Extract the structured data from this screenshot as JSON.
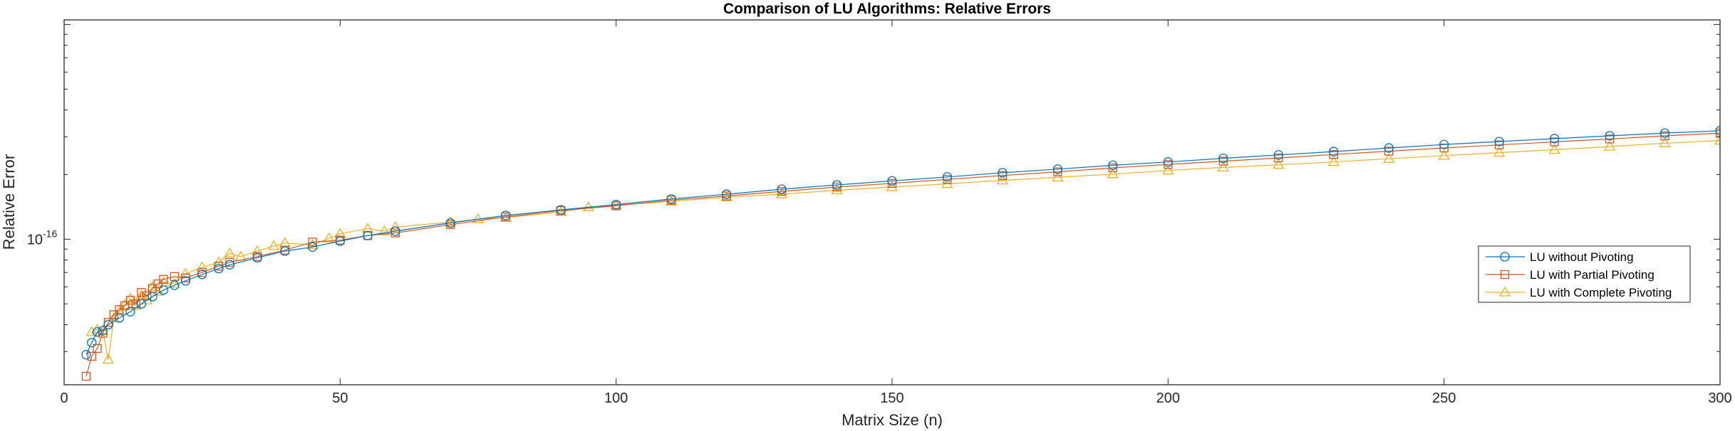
{
  "chart_data": {
    "type": "line",
    "title": "Comparison of LU Algorithms: Relative Errors",
    "xlabel": "Matrix Size (n)",
    "ylabel": "Relative Error",
    "yscale": "log",
    "xlim": [
      0,
      300
    ],
    "ylim": [
      2.1e-17,
      1.05e-15
    ],
    "x_ticks": [
      0,
      50,
      100,
      150,
      200,
      250,
      300
    ],
    "y_tick_labels": [
      {
        "base": "10",
        "exp": "-16",
        "value": 1e-16
      }
    ],
    "legend_position": "lower-right",
    "grid": false,
    "series": [
      {
        "name": "LU without Pivoting",
        "color": "#0072BD",
        "marker": "circle",
        "x": [
          4,
          5,
          6,
          7,
          8,
          10,
          12,
          14,
          16,
          18,
          20,
          22,
          25,
          28,
          30,
          35,
          40,
          45,
          50,
          55,
          60,
          70,
          80,
          90,
          100,
          110,
          120,
          130,
          140,
          150,
          160,
          170,
          180,
          190,
          200,
          210,
          220,
          230,
          240,
          250,
          260,
          270,
          280,
          290,
          300
        ],
        "y": [
          2.9e-17,
          3.3e-17,
          3.7e-17,
          3.75e-17,
          4e-17,
          4.3e-17,
          4.6e-17,
          5e-17,
          5.4e-17,
          5.8e-17,
          6.1e-17,
          6.4e-17,
          6.85e-17,
          7.3e-17,
          7.6e-17,
          8.2e-17,
          8.8e-17,
          9.2e-17,
          9.8e-17,
          1.04e-16,
          1.09e-16,
          1.19e-16,
          1.29e-16,
          1.37e-16,
          1.45e-16,
          1.54e-16,
          1.62e-16,
          1.71e-16,
          1.79e-16,
          1.87e-16,
          1.95e-16,
          2.04e-16,
          2.12e-16,
          2.21e-16,
          2.29e-16,
          2.38e-16,
          2.47e-16,
          2.56e-16,
          2.66e-16,
          2.76e-16,
          2.85e-16,
          2.94e-16,
          3.03e-16,
          3.12e-16,
          3.2e-16
        ]
      },
      {
        "name": "LU with Partial Pivoting",
        "color": "#D95319",
        "marker": "square",
        "x": [
          4,
          5,
          6,
          7,
          8,
          9,
          10,
          11,
          12,
          13,
          14,
          15,
          16,
          17,
          18,
          20,
          22,
          25,
          28,
          30,
          35,
          40,
          45,
          50,
          55,
          60,
          70,
          80,
          90,
          100,
          110,
          120,
          130,
          140,
          150,
          160,
          170,
          180,
          190,
          200,
          210,
          220,
          230,
          240,
          250,
          260,
          270,
          280,
          290,
          300
        ],
        "y": [
          2.3e-17,
          2.85e-17,
          3.1e-17,
          3.65e-17,
          4.1e-17,
          4.45e-17,
          4.7e-17,
          4.9e-17,
          5.2e-17,
          5e-17,
          5.65e-17,
          5.45e-17,
          5.9e-17,
          6.2e-17,
          6.5e-17,
          6.7e-17,
          6.6e-17,
          7e-17,
          7.5e-17,
          7.8e-17,
          8.3e-17,
          8.9e-17,
          9.7e-17,
          9.9e-17,
          1.04e-16,
          1.07e-16,
          1.17e-16,
          1.27e-16,
          1.36e-16,
          1.43e-16,
          1.52e-16,
          1.59e-16,
          1.67e-16,
          1.75e-16,
          1.82e-16,
          1.9e-16,
          1.98e-16,
          2.06e-16,
          2.15e-16,
          2.23e-16,
          2.31e-16,
          2.39e-16,
          2.48e-16,
          2.57e-16,
          2.66e-16,
          2.75e-16,
          2.84e-16,
          2.93e-16,
          3.03e-16,
          3.12e-16
        ]
      },
      {
        "name": "LU with Complete Pivoting",
        "color": "#EDB120",
        "marker": "triangle",
        "x": [
          5,
          6,
          7,
          8,
          9,
          10,
          11,
          12,
          13,
          14,
          15,
          16,
          17,
          18,
          20,
          22,
          25,
          28,
          30,
          32,
          35,
          38,
          40,
          45,
          48,
          50,
          55,
          58,
          60,
          70,
          75,
          80,
          90,
          95,
          100,
          110,
          120,
          130,
          140,
          150,
          160,
          170,
          180,
          190,
          200,
          210,
          220,
          230,
          240,
          250,
          260,
          270,
          280,
          290,
          300
        ],
        "y": [
          3.7e-17,
          3.8e-17,
          3.75e-17,
          2.75e-17,
          4.3e-17,
          4.6e-17,
          4.95e-17,
          5.3e-17,
          4.9e-17,
          5.5e-17,
          5.2e-17,
          6e-17,
          5.7e-17,
          6.3e-17,
          6.2e-17,
          6.9e-17,
          7.4e-17,
          7.8e-17,
          8.6e-17,
          8.3e-17,
          8.8e-17,
          9.3e-17,
          9.6e-17,
          9.4e-17,
          1.01e-16,
          1.06e-16,
          1.12e-16,
          1.09e-16,
          1.14e-16,
          1.2e-16,
          1.24e-16,
          1.26e-16,
          1.34e-16,
          1.41e-16,
          1.44e-16,
          1.5e-16,
          1.57e-16,
          1.62e-16,
          1.69e-16,
          1.75e-16,
          1.81e-16,
          1.88e-16,
          1.94e-16,
          2.01e-16,
          2.09e-16,
          2.16e-16,
          2.22e-16,
          2.29e-16,
          2.37e-16,
          2.45e-16,
          2.53e-16,
          2.61e-16,
          2.7e-16,
          2.8e-16,
          2.88e-16
        ]
      }
    ]
  }
}
